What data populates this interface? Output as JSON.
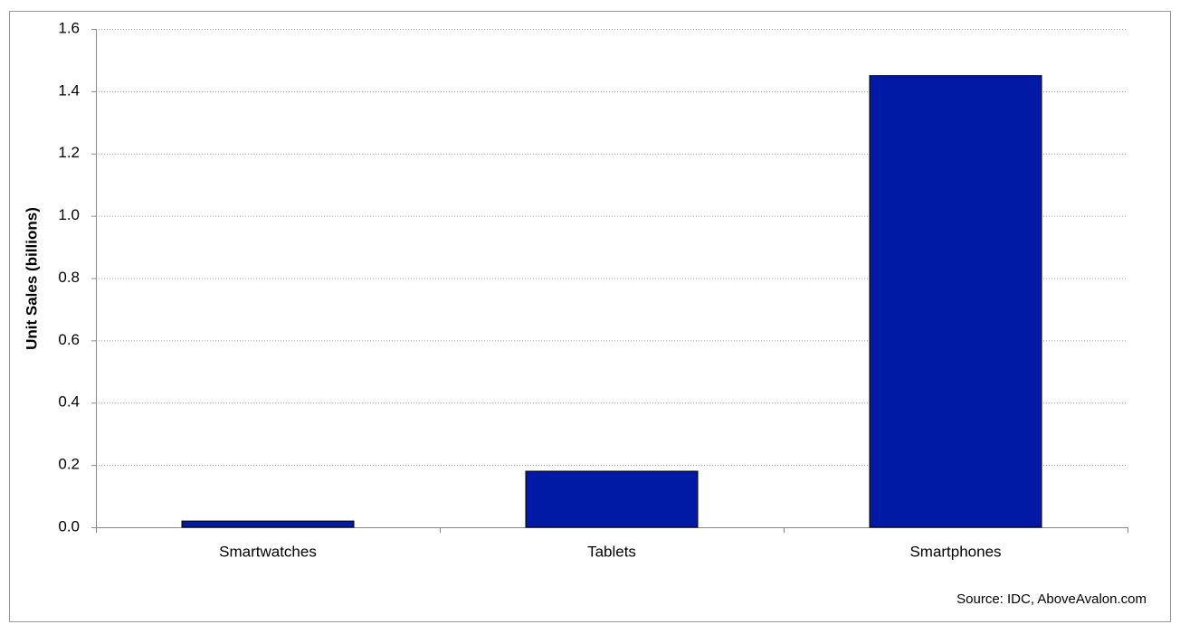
{
  "chart_data": {
    "type": "bar",
    "y_label": "Unit Sales (billions)",
    "source": "Source: IDC, AboveAvalon.com",
    "categories": [
      "Smartwatches",
      "Tablets",
      "Smartphones"
    ],
    "values": [
      0.02,
      0.18,
      1.45
    ],
    "color": "#001aa6",
    "ylim": [
      0,
      1.6
    ],
    "yticks": [
      {
        "value": 0,
        "label": "0.0"
      },
      0.2,
      0.4,
      0.6,
      0.8,
      {
        "value": 1,
        "label": "1.0"
      },
      1.2,
      1.4,
      1.6
    ],
    "grid": true
  }
}
